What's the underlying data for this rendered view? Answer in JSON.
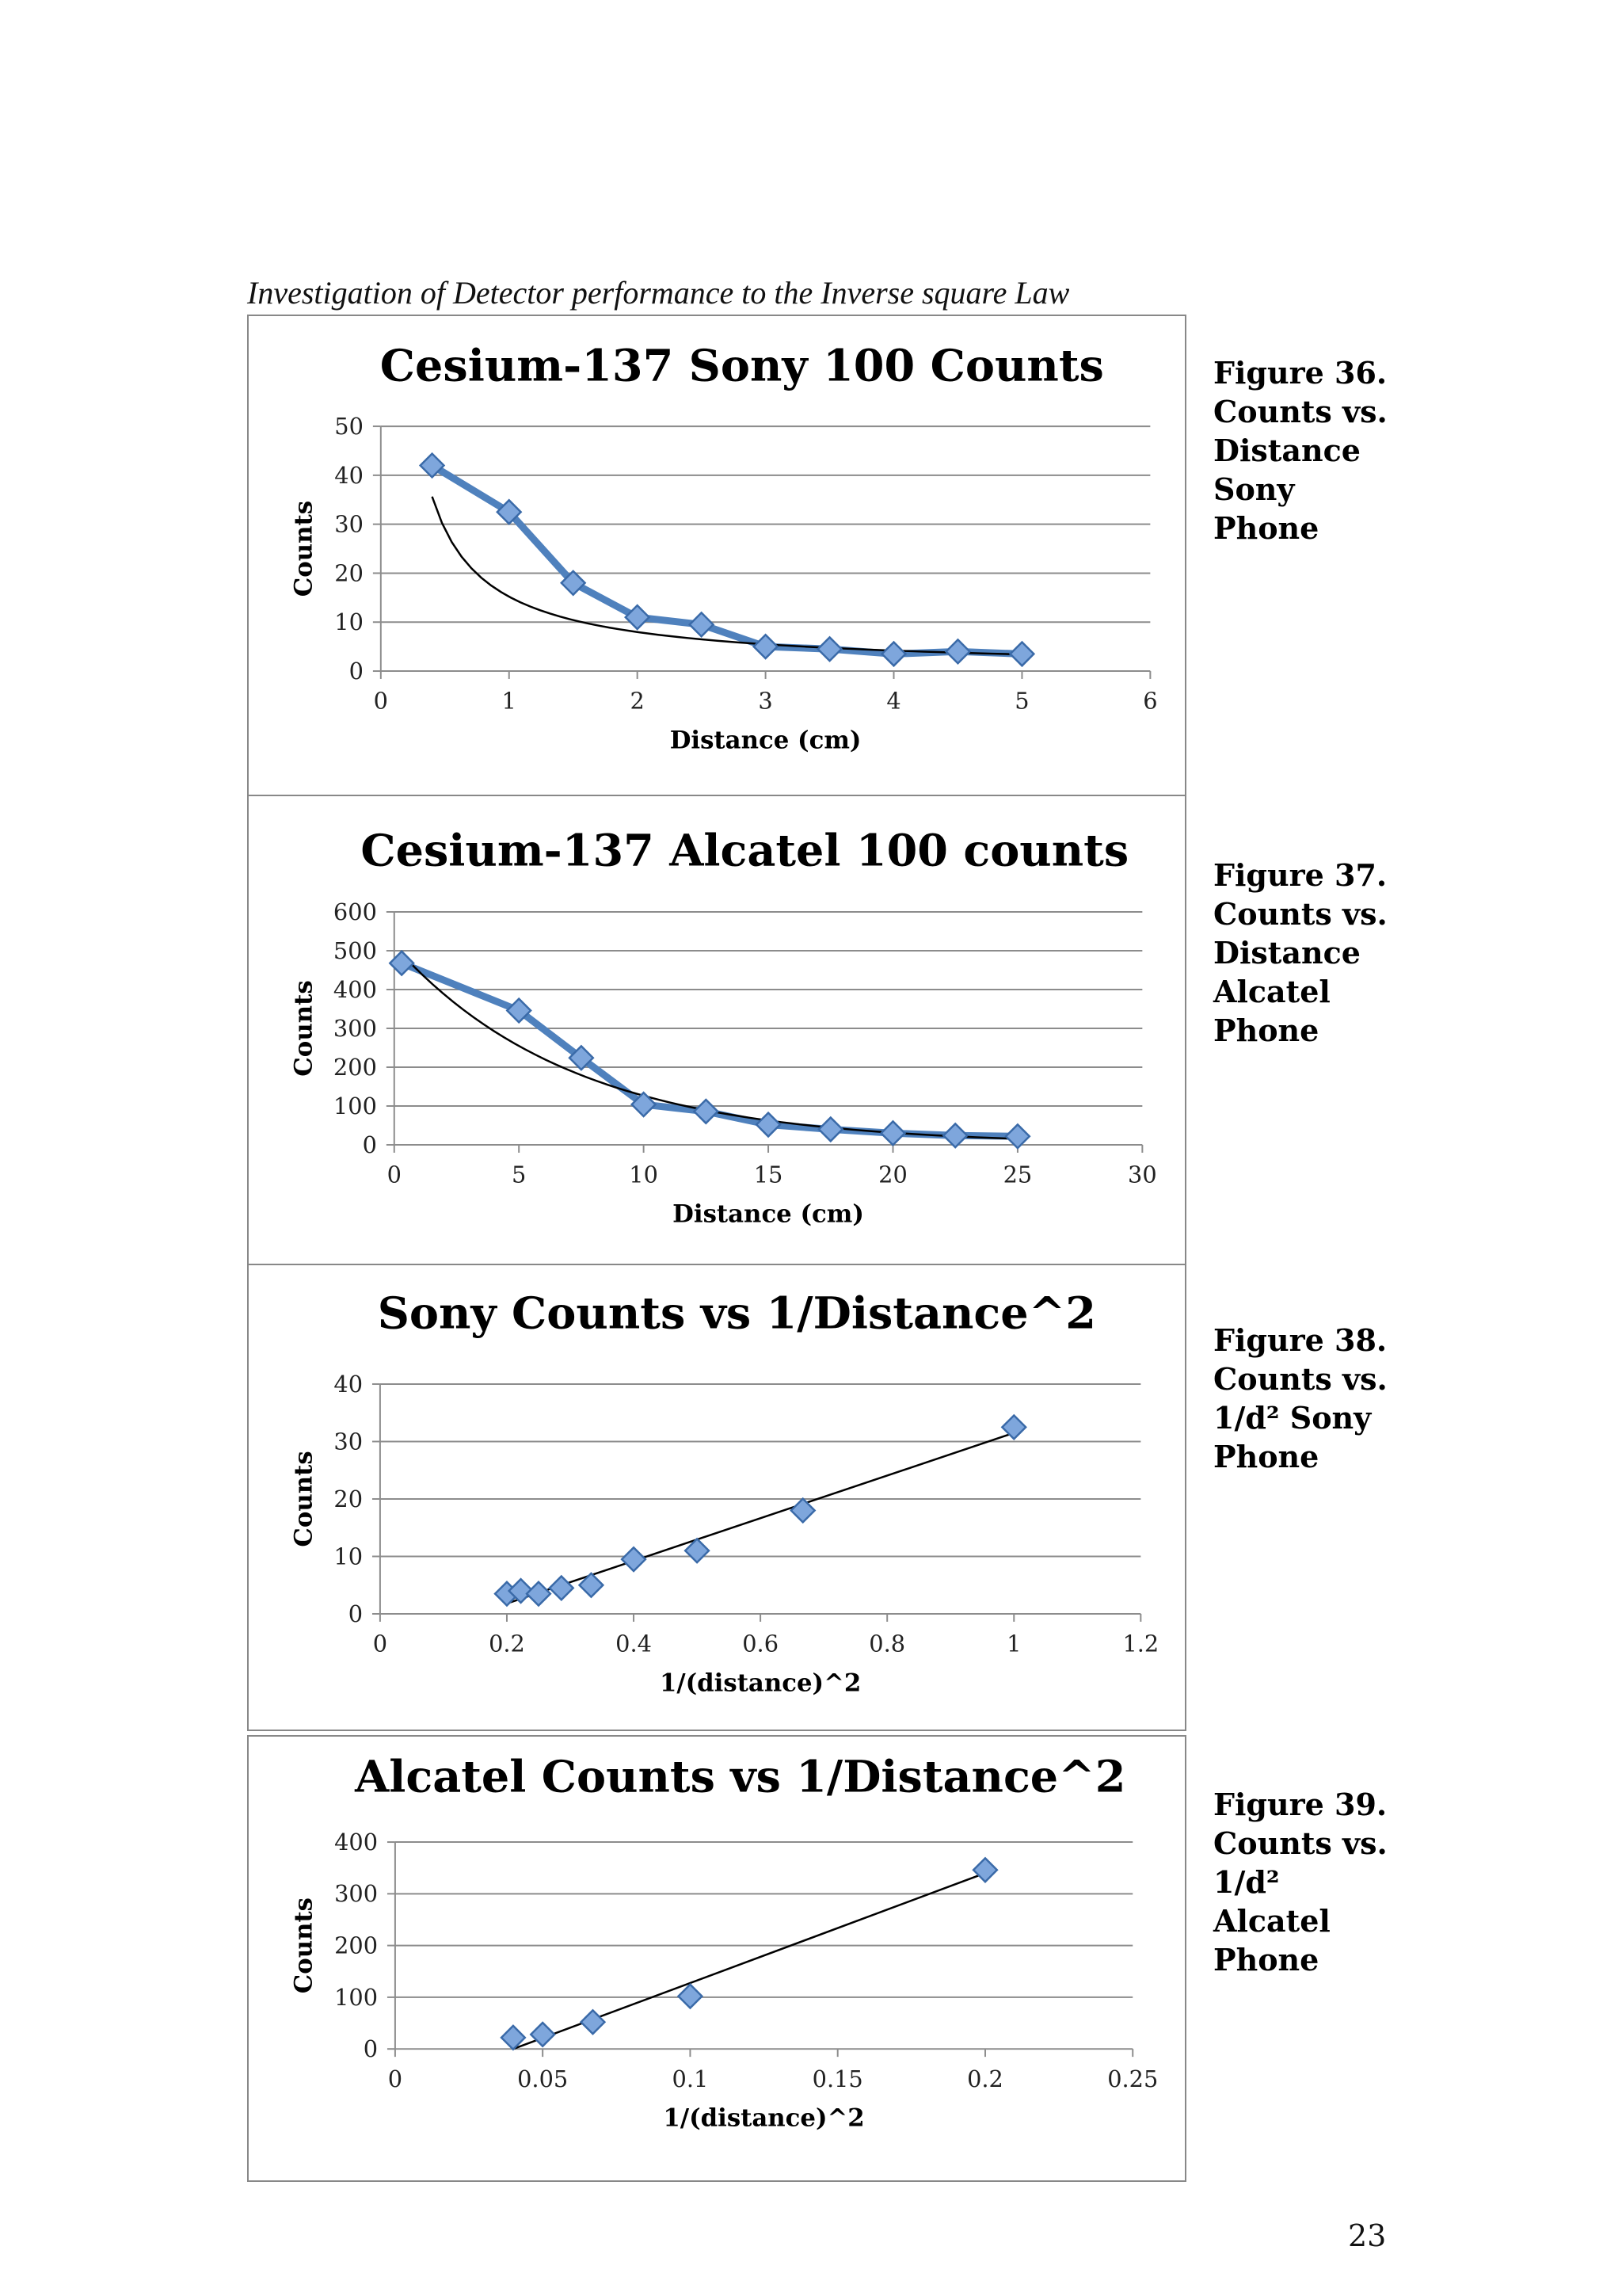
{
  "heading": "Investigation of Detector performance to the Inverse square Law",
  "page_number": "23",
  "captions": [
    {
      "lines": [
        "Figure 36.",
        "Counts vs.",
        "Distance",
        "Sony",
        "Phone"
      ]
    },
    {
      "lines": [
        "Figure 37.",
        "Counts vs.",
        "Distance",
        "Alcatel",
        "Phone"
      ]
    },
    {
      "lines": [
        "Figure 38.",
        "Counts vs.",
        "1/d² Sony",
        "Phone"
      ]
    },
    {
      "lines": [
        "Figure 39.",
        "Counts vs.",
        "1/d²",
        "Alcatel",
        "Phone"
      ]
    }
  ],
  "colors": {
    "series": "#4f81bd",
    "marker_fill": "#7ea6dc",
    "marker_stroke": "#3a6aa8",
    "trend": "#000000",
    "grid": "#8c8c8c"
  },
  "chart_data": [
    {
      "type": "line",
      "title": "Cesium-137 Sony 100 Counts",
      "xlabel": "Distance (cm)",
      "ylabel": "Counts",
      "xlim": [
        0,
        6
      ],
      "ylim": [
        0,
        50
      ],
      "xticks": [
        0,
        1,
        2,
        3,
        4,
        5,
        6
      ],
      "yticks": [
        0,
        10,
        20,
        30,
        40,
        50
      ],
      "series": [
        {
          "x": [
            0.4,
            1,
            1.5,
            2,
            2.5,
            3,
            3.5,
            4,
            4.5,
            5
          ],
          "y": [
            42,
            32.5,
            18,
            11,
            9.5,
            5,
            4.5,
            3.5,
            4,
            3.5
          ]
        }
      ],
      "trendline": {
        "kind": "power",
        "x_range": [
          0.4,
          5
        ],
        "a": 15.2,
        "b": -0.93
      },
      "grid": true,
      "legend": "none"
    },
    {
      "type": "line",
      "title": "Cesium-137 Alcatel 100 counts",
      "xlabel": "Distance (cm)",
      "ylabel": "Counts",
      "xlim": [
        0,
        30
      ],
      "ylim": [
        0,
        600
      ],
      "xticks": [
        0,
        5,
        10,
        15,
        20,
        25,
        30
      ],
      "yticks": [
        0,
        100,
        200,
        300,
        400,
        500,
        600
      ],
      "series": [
        {
          "x": [
            0.3,
            5,
            7.5,
            10,
            12.5,
            15,
            17.5,
            20,
            22.5,
            25
          ],
          "y": [
            468,
            346,
            224,
            104,
            86,
            52,
            40,
            30,
            24,
            22
          ]
        }
      ],
      "trendline": {
        "kind": "exponential",
        "x_range": [
          0.3,
          25
        ],
        "a": 513,
        "b": -0.14
      },
      "grid": true,
      "legend": "none"
    },
    {
      "type": "scatter",
      "title": "Sony Counts vs 1/Distance^2",
      "xlabel": "1/(distance)^2",
      "ylabel": "Counts",
      "xlim": [
        0,
        1.2
      ],
      "ylim": [
        0,
        40
      ],
      "xticks": [
        0,
        0.2,
        0.4,
        0.6,
        0.8,
        1,
        1.2
      ],
      "yticks": [
        0,
        10,
        20,
        30,
        40
      ],
      "series": [
        {
          "x": [
            0.2,
            0.222,
            0.25,
            0.286,
            0.333,
            0.4,
            0.5,
            0.667,
            1
          ],
          "y": [
            3.5,
            4,
            3.5,
            4.5,
            5,
            9.5,
            11,
            18,
            32.5
          ]
        }
      ],
      "trendline": {
        "kind": "linear",
        "x_range": [
          0.2,
          1
        ],
        "points": [
          [
            0.2,
            1.8
          ],
          [
            1,
            31.5
          ]
        ]
      },
      "grid": true,
      "legend": "none"
    },
    {
      "type": "scatter",
      "title": "Alcatel Counts vs 1/Distance^2",
      "xlabel": "1/(distance)^2",
      "ylabel": "Counts",
      "xlim": [
        0,
        0.25
      ],
      "ylim": [
        0,
        400
      ],
      "xticks": [
        0,
        0.05,
        0.1,
        0.15,
        0.2,
        0.25
      ],
      "yticks": [
        0,
        100,
        200,
        300,
        400
      ],
      "series": [
        {
          "x": [
            0.04,
            0.05,
            0.067,
            0.1,
            0.2
          ],
          "y": [
            22,
            28,
            52,
            102,
            346
          ]
        }
      ],
      "trendline": {
        "kind": "linear",
        "x_range": [
          0.04,
          0.2
        ],
        "points": [
          [
            0.04,
            0
          ],
          [
            0.2,
            340
          ]
        ]
      },
      "grid": true,
      "legend": "none"
    }
  ]
}
